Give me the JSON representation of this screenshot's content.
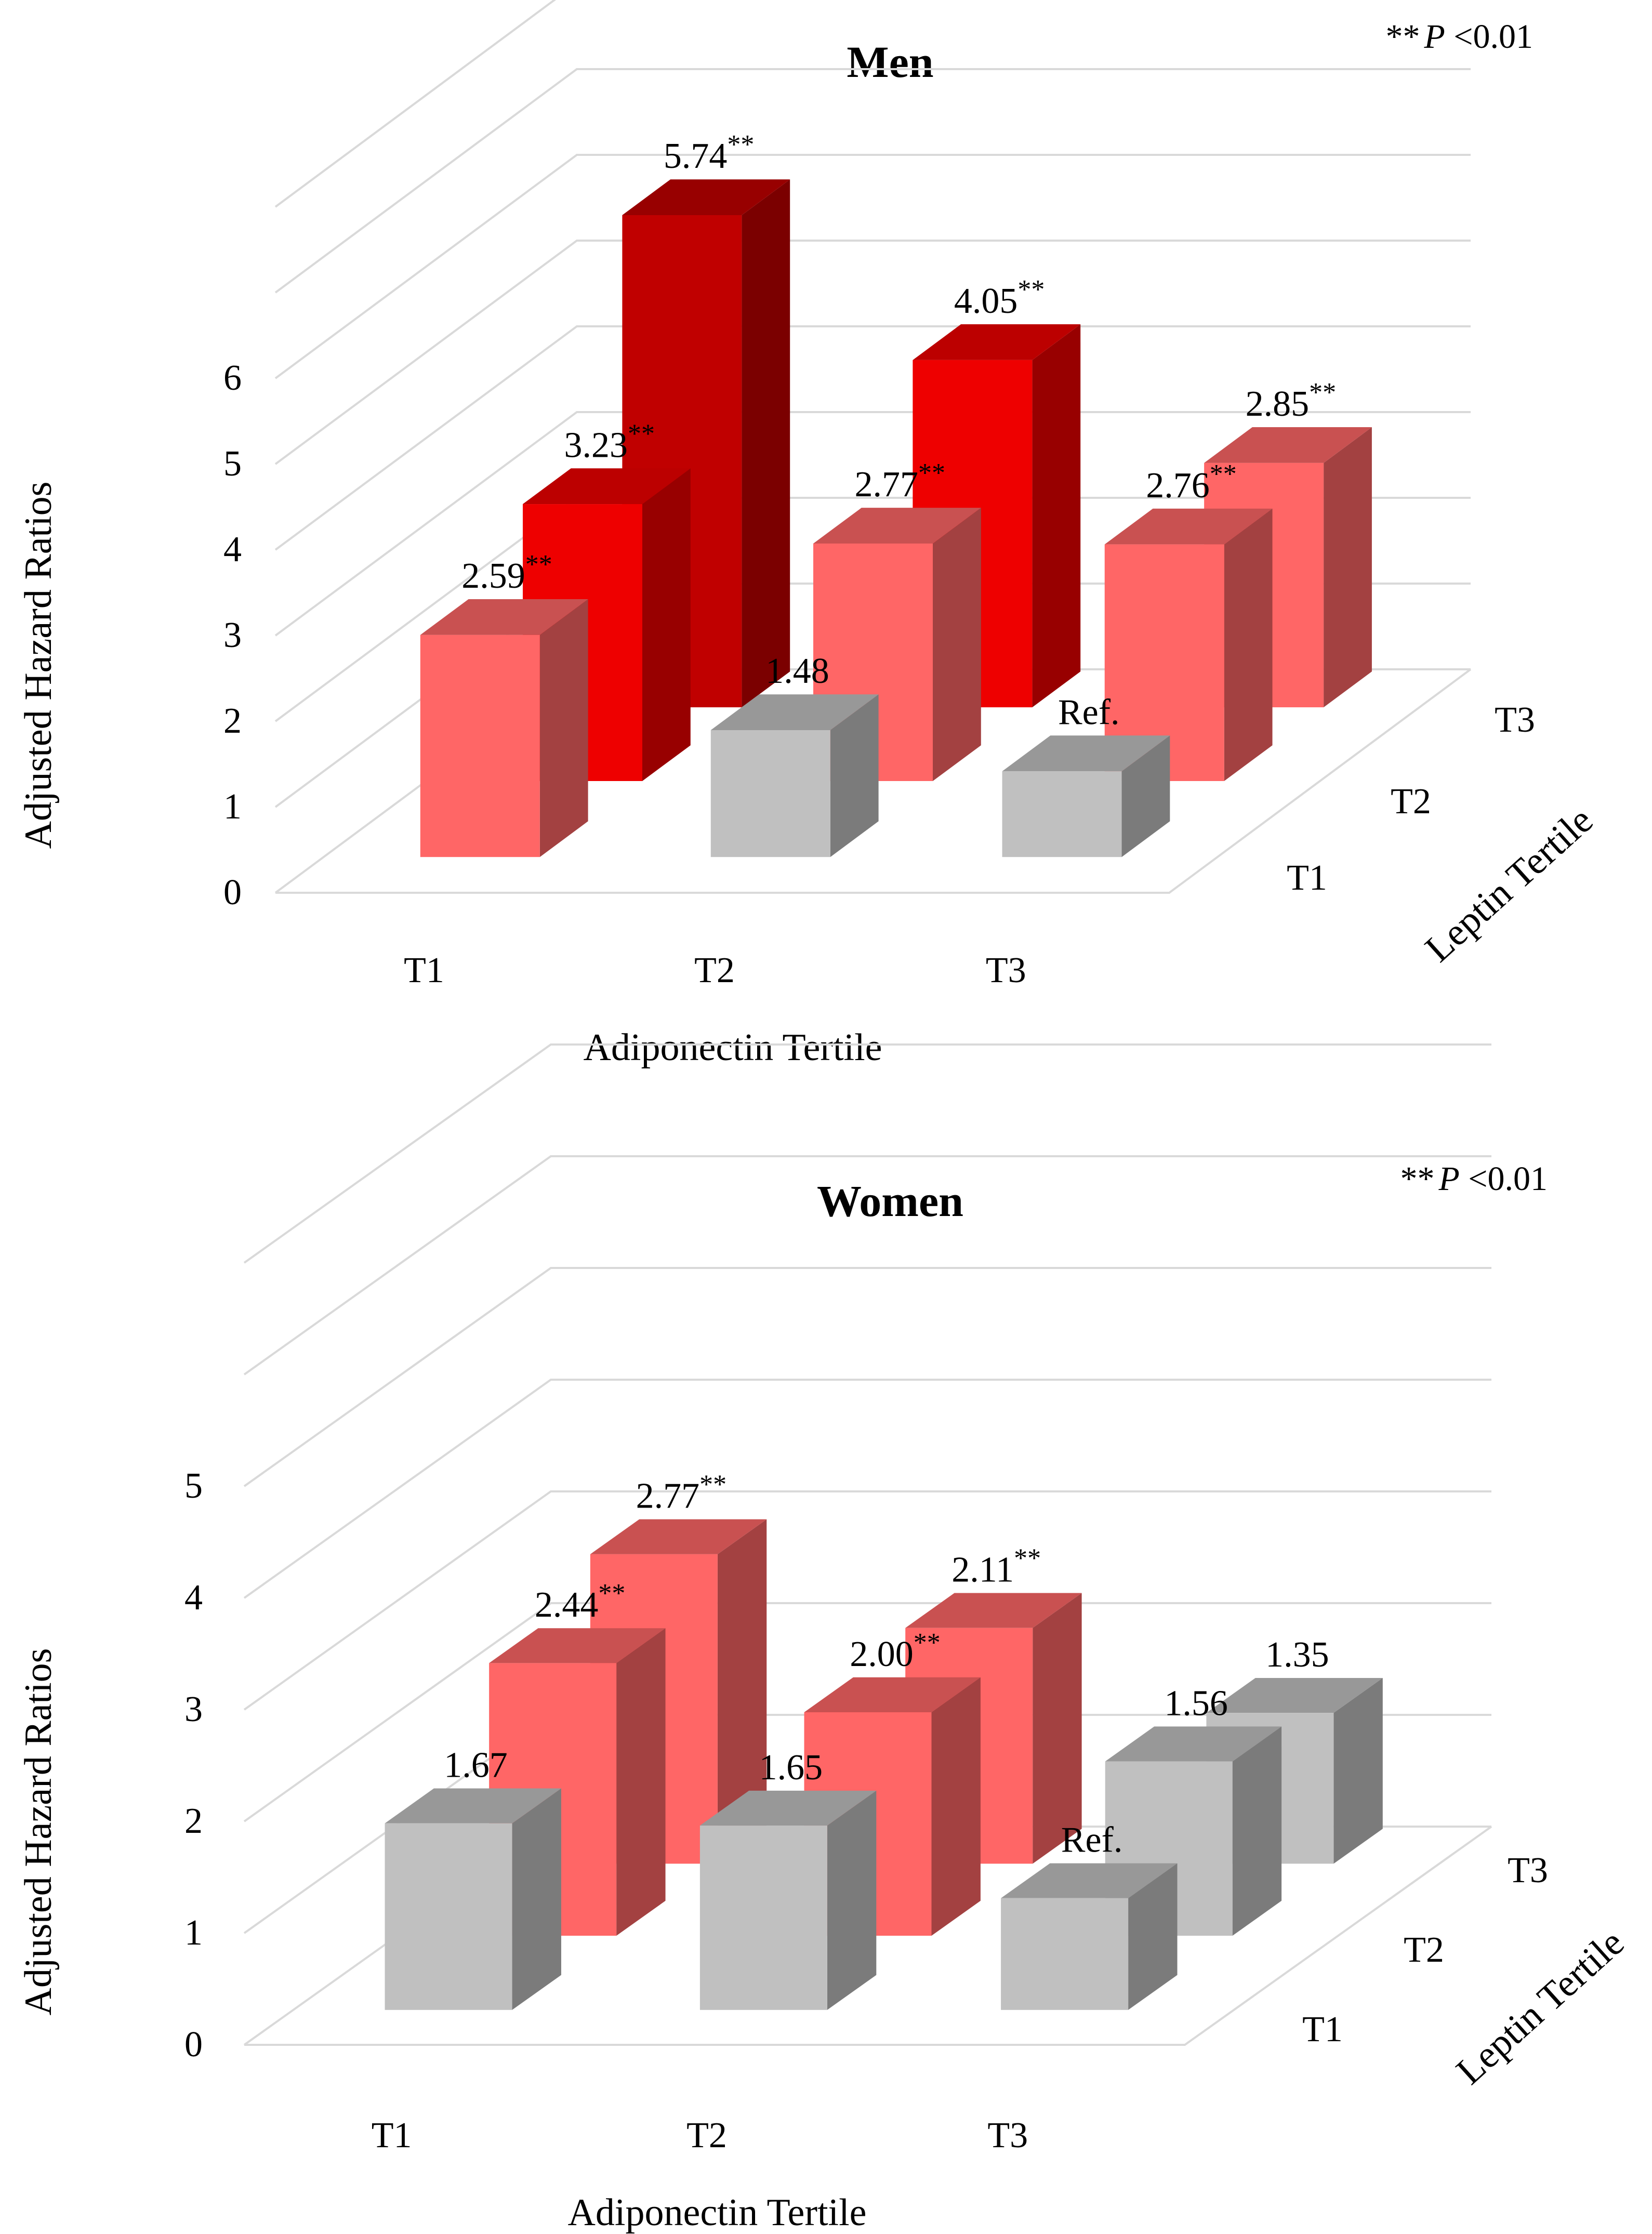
{
  "palette": {
    "grey": "#c0c0c0",
    "light_red": "#ff6666",
    "red": "#ee0000",
    "dark_red": "#c00000",
    "gridline": "#d9d9d9"
  },
  "chart_data": [
    {
      "type": "bar",
      "subtype": "3d-clustered",
      "title": "Men",
      "note": {
        "stars": "**",
        "p_label": "P",
        "rest": " <0.01"
      },
      "xlabel": "Adiponectin Tertile",
      "ylabel": "Adjusted Hazard Ratios",
      "zlabel": "Leptin Tertile",
      "categories": [
        "T1",
        "T2",
        "T3"
      ],
      "series_labels": [
        "T1",
        "T2",
        "T3"
      ],
      "yticks": [
        "0",
        "1",
        "2",
        "3",
        "4",
        "5",
        "6"
      ],
      "ylim": [
        0,
        8
      ],
      "series": [
        {
          "name": "T1",
          "values": [
            2.59,
            1.48,
            1.0
          ],
          "labels": [
            "2.59",
            "1.48",
            "Ref."
          ],
          "significant": [
            true,
            false,
            false
          ],
          "colors": [
            "light_red",
            "grey",
            "grey"
          ]
        },
        {
          "name": "T2",
          "values": [
            3.23,
            2.77,
            2.76
          ],
          "labels": [
            "3.23",
            "2.77",
            "2.76"
          ],
          "significant": [
            true,
            true,
            true
          ],
          "colors": [
            "red",
            "light_red",
            "light_red"
          ]
        },
        {
          "name": "T3",
          "values": [
            5.74,
            4.05,
            2.85
          ],
          "labels": [
            "5.74",
            "4.05",
            "2.85"
          ],
          "significant": [
            true,
            true,
            true
          ],
          "colors": [
            "dark_red",
            "red",
            "light_red"
          ]
        }
      ]
    },
    {
      "type": "bar",
      "subtype": "3d-clustered",
      "title": "Women",
      "note": {
        "stars": "**",
        "p_label": "P",
        "rest": " <0.01"
      },
      "xlabel": "Adiponectin Tertile",
      "ylabel": "Adjusted Hazard Ratios",
      "zlabel": "Leptin Tertile",
      "categories": [
        "T1",
        "T2",
        "T3"
      ],
      "series_labels": [
        "T1",
        "T2",
        "T3"
      ],
      "yticks": [
        "0",
        "1",
        "2",
        "3",
        "4",
        "5"
      ],
      "ylim": [
        0,
        7
      ],
      "series": [
        {
          "name": "T1",
          "values": [
            1.67,
            1.65,
            1.0
          ],
          "labels": [
            "1.67",
            "1.65",
            "Ref."
          ],
          "significant": [
            false,
            false,
            false
          ],
          "colors": [
            "grey",
            "grey",
            "grey"
          ]
        },
        {
          "name": "T2",
          "values": [
            2.44,
            2.0,
            1.56
          ],
          "labels": [
            "2.44",
            "2.00",
            "1.56"
          ],
          "significant": [
            true,
            true,
            false
          ],
          "colors": [
            "light_red",
            "light_red",
            "grey"
          ]
        },
        {
          "name": "T3",
          "values": [
            2.77,
            2.11,
            1.35
          ],
          "labels": [
            "2.77",
            "2.11",
            "1.35"
          ],
          "significant": [
            true,
            true,
            false
          ],
          "colors": [
            "light_red",
            "light_red",
            "grey"
          ]
        }
      ]
    }
  ]
}
